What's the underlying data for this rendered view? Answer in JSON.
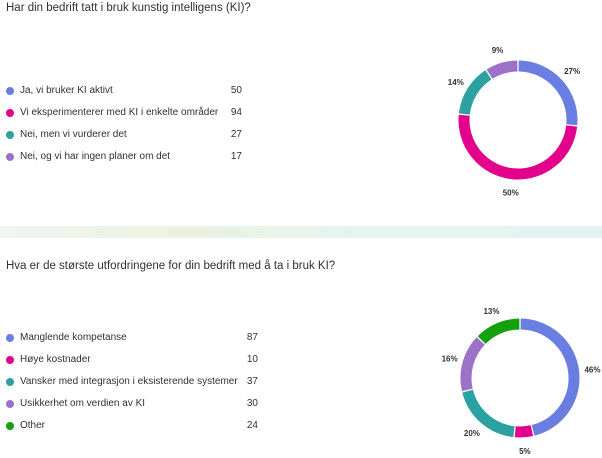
{
  "charts": [
    {
      "question": "Har din bedrift tatt i bruk kunstig intelligens (KI)?",
      "items": [
        {
          "label": "Ja, vi bruker KI aktivt",
          "count": "50",
          "color": "#6a7de0"
        },
        {
          "label": "Vi eksperimenterer med KI i enkelte områder",
          "count": "94",
          "color": "#e3008c"
        },
        {
          "label": "Nei, men vi vurderer det",
          "count": "27",
          "color": "#2ca1a1"
        },
        {
          "label": "Nei, og vi har ingen planer om det",
          "count": "17",
          "color": "#9b72c8"
        }
      ]
    },
    {
      "question": "Hva er de største utfordringene for din bedrift med å ta i bruk KI?",
      "items": [
        {
          "label": "Manglende kompetanse",
          "count": "87",
          "color": "#6a7de0"
        },
        {
          "label": "Høye kostnader",
          "count": "10",
          "color": "#e3008c"
        },
        {
          "label": "Vansker med integrasjon i eksisterende systemer",
          "count": "37",
          "color": "#2ca1a1"
        },
        {
          "label": "Usikkerhet om verdien av KI",
          "count": "30",
          "color": "#9b72c8"
        },
        {
          "label": "Other",
          "count": "24",
          "color": "#13a10e"
        }
      ]
    }
  ],
  "chart_data": [
    {
      "type": "pie",
      "title": "Har din bedrift tatt i bruk kunstig intelligens (KI)?",
      "categories": [
        "Ja, vi bruker KI aktivt",
        "Vi eksperimenterer med KI i enkelte områder",
        "Nei, men vi vurderer det",
        "Nei, og vi har ingen planer om det"
      ],
      "values": [
        50,
        94,
        27,
        17
      ],
      "percent_labels": [
        "27%",
        "50%",
        "14%",
        "9%"
      ],
      "colors": [
        "#6a7de0",
        "#e3008c",
        "#2ca1a1",
        "#9b72c8"
      ],
      "legend": "left"
    },
    {
      "type": "pie",
      "title": "Hva er de største utfordringene for din bedrift med å ta i bruk KI?",
      "categories": [
        "Manglende kompetanse",
        "Høye kostnader",
        "Vansker med integrasjon i eksisterende systemer",
        "Usikkerhet om verdien av KI",
        "Other"
      ],
      "values": [
        87,
        10,
        37,
        30,
        24
      ],
      "percent_labels": [
        "46%",
        "5%",
        "20%",
        "16%",
        "13%"
      ],
      "colors": [
        "#6a7de0",
        "#e3008c",
        "#2ca1a1",
        "#9b72c8",
        "#13a10e"
      ],
      "legend": "left"
    }
  ]
}
